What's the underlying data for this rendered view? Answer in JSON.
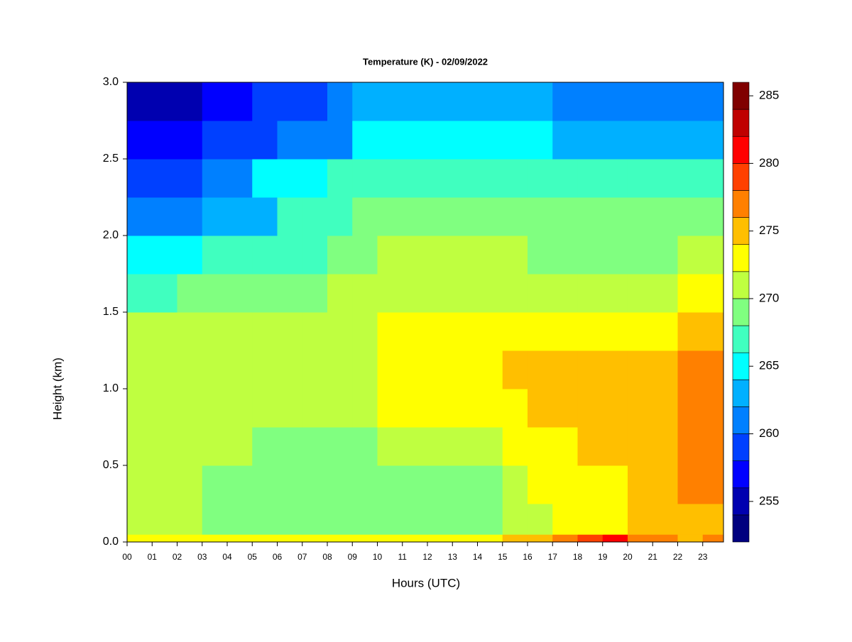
{
  "chart_data": {
    "type": "heatmap",
    "title": "Temperature (K) - 02/09/2022",
    "x_label": "Hours (UTC)",
    "y_label": "Height (km)",
    "xlim": [
      0,
      23.83
    ],
    "ylim": [
      0,
      3
    ],
    "xticks": [
      {
        "value": 0,
        "label": "00"
      },
      {
        "value": 1,
        "label": "01"
      },
      {
        "value": 2,
        "label": "02"
      },
      {
        "value": 3,
        "label": "03"
      },
      {
        "value": 4,
        "label": "04"
      },
      {
        "value": 5,
        "label": "05"
      },
      {
        "value": 6,
        "label": "06"
      },
      {
        "value": 7,
        "label": "07"
      },
      {
        "value": 8,
        "label": "08"
      },
      {
        "value": 9,
        "label": "09"
      },
      10,
      11,
      12,
      13,
      14,
      15,
      16,
      17,
      18,
      19,
      20,
      21,
      22,
      23
    ],
    "yticks": [
      {
        "value": 0,
        "label": "0.0"
      },
      0.5,
      {
        "value": 1,
        "label": "1.0"
      },
      1.5,
      {
        "value": 2,
        "label": "2.0"
      },
      2.5,
      {
        "value": 3,
        "label": "3.0"
      }
    ],
    "x_bins": [
      0,
      1,
      2,
      3,
      4,
      5,
      6,
      7,
      8,
      9,
      10,
      11,
      12,
      13,
      14,
      15,
      16,
      17,
      18,
      19,
      20,
      21,
      22,
      23,
      23.83
    ],
    "y_bins": [
      0,
      0.05,
      0.25,
      0.5,
      0.75,
      1.0,
      1.25,
      1.5,
      1.75,
      2.0,
      2.25,
      2.5,
      2.75,
      3.0
    ],
    "z": [
      [
        273,
        273,
        273,
        273,
        273,
        273,
        273,
        273,
        273,
        273,
        273,
        273,
        273,
        273,
        273,
        274,
        274,
        277,
        279,
        281,
        277,
        276,
        275,
        276
      ],
      [
        271,
        271,
        271,
        269,
        269,
        269,
        269,
        269,
        269,
        269,
        269,
        269,
        269,
        269,
        269,
        270,
        271,
        273,
        273,
        273,
        275,
        275,
        275,
        275
      ],
      [
        271,
        271,
        271,
        269,
        269,
        269,
        269,
        269,
        269,
        269,
        269,
        269,
        269,
        269,
        269,
        271,
        273,
        273,
        273,
        273,
        275,
        275,
        277,
        277
      ],
      [
        271,
        271,
        271,
        271,
        271,
        269,
        269,
        269,
        269,
        269,
        271,
        271,
        271,
        271,
        271,
        273,
        273,
        273,
        275,
        275,
        275,
        275,
        277,
        277
      ],
      [
        271,
        271,
        271,
        271,
        271,
        271,
        271,
        271,
        271,
        271,
        273,
        273,
        273,
        273,
        273,
        273,
        275,
        275,
        275,
        275,
        275,
        275,
        277,
        277
      ],
      [
        271,
        271,
        271,
        271,
        271,
        271,
        271,
        271,
        271,
        271,
        273,
        273,
        273,
        273,
        273,
        275,
        275,
        275,
        275,
        275,
        275,
        275,
        277,
        277
      ],
      [
        271,
        271,
        271,
        271,
        271,
        271,
        271,
        271,
        271,
        271,
        273,
        273,
        273,
        273,
        273,
        273,
        273,
        273,
        273,
        273,
        273,
        273,
        275,
        275
      ],
      [
        267,
        267,
        269,
        269,
        269,
        269,
        269,
        269,
        271,
        271,
        271,
        271,
        271,
        271,
        271,
        271,
        271,
        271,
        271,
        271,
        271,
        271,
        273,
        273
      ],
      [
        265,
        265,
        265,
        267,
        267,
        267,
        267,
        267,
        269,
        269,
        271,
        271,
        271,
        271,
        271,
        271,
        269,
        269,
        269,
        269,
        269,
        269,
        271,
        271
      ],
      [
        261,
        261,
        261,
        263,
        263,
        263,
        267,
        267,
        267,
        269,
        269,
        269,
        269,
        269,
        269,
        269,
        269,
        269,
        269,
        269,
        269,
        269,
        269,
        269
      ],
      [
        259,
        259,
        259,
        261,
        261,
        265,
        265,
        265,
        267,
        267,
        267,
        267,
        267,
        267,
        267,
        267,
        267,
        267,
        267,
        267,
        267,
        267,
        267,
        267
      ],
      [
        257,
        257,
        257,
        259,
        259,
        259,
        261,
        261,
        261,
        265,
        265,
        265,
        265,
        265,
        265,
        265,
        265,
        263,
        263,
        263,
        263,
        263,
        263,
        263
      ],
      [
        255,
        255,
        255,
        257,
        257,
        259,
        259,
        259,
        261,
        263,
        263,
        263,
        263,
        263,
        263,
        263,
        263,
        261,
        261,
        261,
        261,
        261,
        261,
        261
      ]
    ],
    "levels": [
      252,
      254,
      256,
      258,
      260,
      262,
      264,
      266,
      268,
      270,
      272,
      274,
      276,
      278,
      280,
      282,
      284,
      286
    ],
    "colors": [
      "#00007f",
      "#0000b0",
      "#0000ff",
      "#0040ff",
      "#0080ff",
      "#00b0ff",
      "#00ffff",
      "#40ffbf",
      "#80ff80",
      "#bfff40",
      "#ffff00",
      "#ffbf00",
      "#ff8000",
      "#ff4000",
      "#ff0000",
      "#bf0000",
      "#800000"
    ],
    "colorbar_ticks": [
      255,
      260,
      265,
      270,
      275,
      280,
      285
    ]
  }
}
